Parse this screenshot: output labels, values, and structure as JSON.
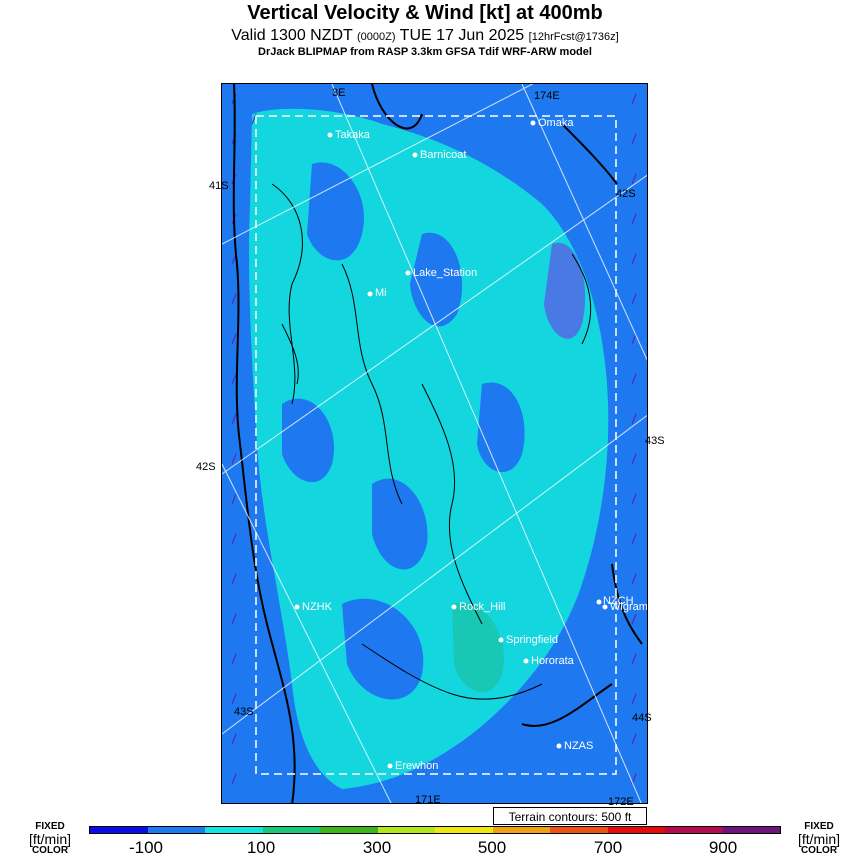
{
  "title": "Vertical Velocity & Wind [kt] at 400mb",
  "subtitle_main": "Valid 1300 NZDT",
  "subtitle_zulu": "(0000Z)",
  "subtitle_date": "TUE 17 Jun 2025",
  "subtitle_fcst": "[12hrFcst@1736z]",
  "model_line": "DrJack BLIPMAP from RASP 3.3km GFSA Tdif WRF-ARW model",
  "terrain_note": "Terrain contours: 500 ft",
  "fixed_label": {
    "l1": "FIXED",
    "l2": "[ft/min]",
    "l3": "COLOR"
  },
  "colorbar": {
    "colors": [
      "#0a0ae6",
      "#1e78f0",
      "#12e6dc",
      "#18c878",
      "#3cb41e",
      "#b4e61e",
      "#f0e614",
      "#f0a014",
      "#f05014",
      "#e60a0a",
      "#b40a50",
      "#6e147d"
    ],
    "tick_labels": [
      "-100",
      "100",
      "300",
      "500",
      "700",
      "900"
    ]
  },
  "map": {
    "colors": {
      "bg": "#1e78f0",
      "cyan": "#12e6dc",
      "teal": "#18c8b4",
      "violet": "#6e3ce6"
    },
    "coords": {
      "lat_left_41": "41S",
      "lat_left_42": "42S",
      "lat_left_43": "43S",
      "lat_right_42": "42S",
      "lat_right_43": "43S",
      "lat_right_44": "44S",
      "lon_top_173": "3E",
      "lon_top_174": "174E",
      "lon_bot_171": "171E",
      "lon_bot_172": "172E"
    },
    "places": [
      "Takaka",
      "Omaka",
      "Barnicoat",
      "Lake_Station",
      "Mi",
      "NZHK",
      "Rock_Hill",
      "NZCH",
      "Wigram",
      "Springfield",
      "Hororata",
      "NZAS",
      "Erewhon"
    ]
  }
}
